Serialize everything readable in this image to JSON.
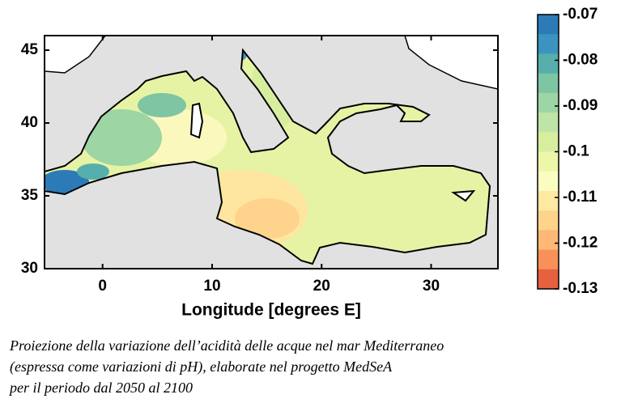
{
  "map": {
    "x_label": "Longitude [degrees E]",
    "xlim": [
      -5.3,
      36.1
    ],
    "xticks": [
      0,
      10,
      20,
      30
    ],
    "ylim": [
      30,
      46
    ],
    "yticks": [
      30,
      35,
      40,
      45
    ],
    "colorbar": {
      "lim": [
        -0.13,
        -0.07
      ],
      "ticks": [
        -0.07,
        -0.08,
        -0.09,
        -0.1,
        -0.11,
        -0.12,
        -0.13
      ],
      "colors": [
        "#2c7bb6",
        "#3b94c0",
        "#56afac",
        "#7dc5a3",
        "#9dd5a4",
        "#bfe4a8",
        "#d7ee9f",
        "#ecf7a8",
        "#fbfcc2",
        "#fee9a2",
        "#fed48b",
        "#fdb875",
        "#f8905a",
        "#e6613f"
      ]
    }
  },
  "caption": {
    "lines": [
      "Proiezione della variazione dell’acidità delle acque nel mar Mediterraneo",
      "(espressa come variazioni di pH), elaborate nel progetto MedSeA",
      "per il periodo dal 2050 al 2100"
    ]
  }
}
